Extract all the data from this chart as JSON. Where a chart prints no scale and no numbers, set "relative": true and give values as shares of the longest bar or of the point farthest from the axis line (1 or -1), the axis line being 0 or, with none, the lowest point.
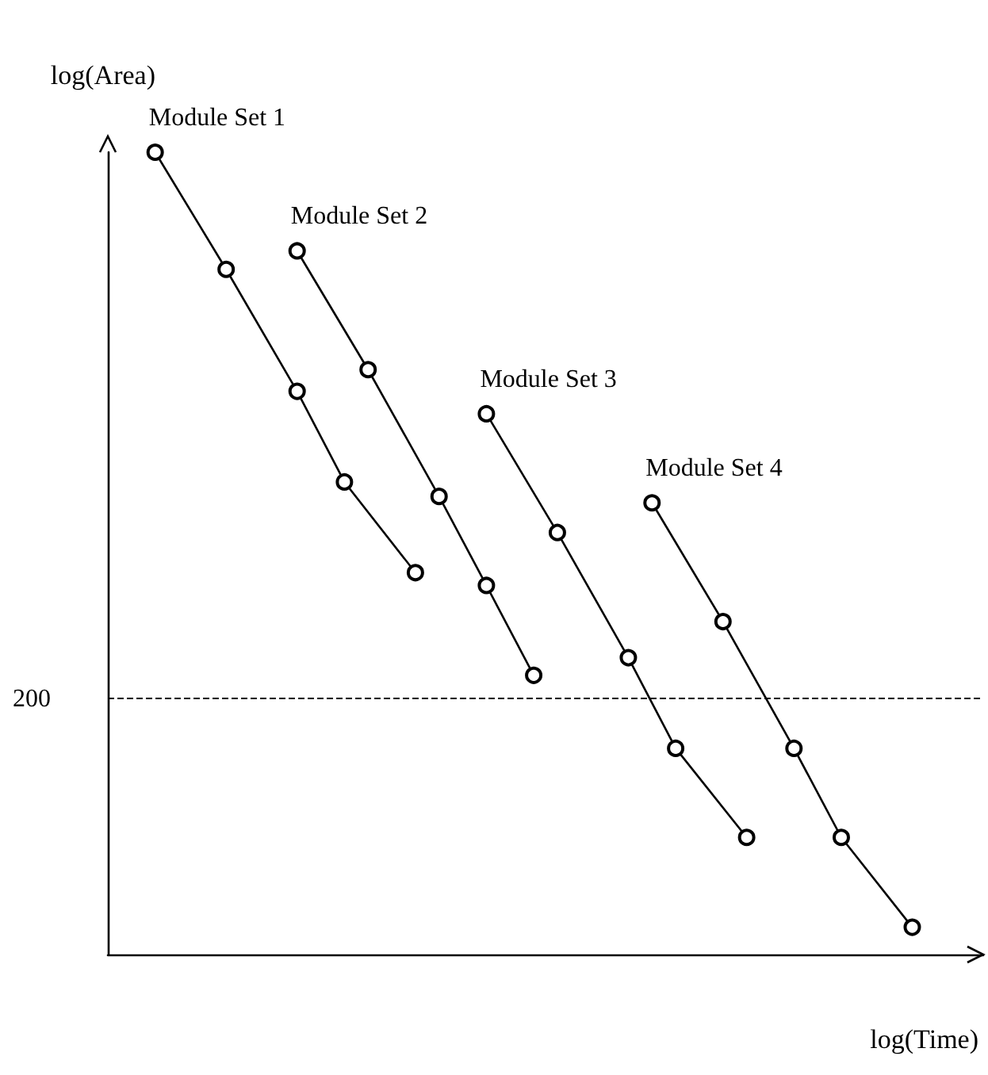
{
  "chart_data": {
    "type": "line",
    "relative": true,
    "xlabel": "log(Time)",
    "ylabel": "log(Area)",
    "marker": "circle",
    "line_style": "solid",
    "grid": false,
    "legend": false,
    "categories": [
      null,
      null,
      null,
      null,
      null,
      null,
      null,
      null,
      null,
      null,
      null,
      null,
      null,
      null,
      null,
      null,
      null,
      null,
      null,
      null,
      null,
      null,
      null,
      null,
      null,
      null,
      null,
      null,
      null,
      null,
      null,
      null,
      null,
      null,
      null,
      null,
      null,
      null
    ],
    "series": [
      {
        "name": "Module Set 1",
        "color": "#000000",
        "values": [
          null,
          null,
          1,
          null,
          null,
          0.854,
          null,
          null,
          0.702,
          null,
          0.589,
          null,
          null,
          0.476,
          null,
          null,
          null,
          null,
          null,
          null,
          null,
          null,
          null,
          null,
          null,
          null,
          null,
          null,
          null,
          null,
          null,
          null,
          null,
          null,
          null,
          null,
          null,
          null
        ]
      },
      {
        "name": "Module Set 2",
        "color": "#000000",
        "values": [
          null,
          null,
          null,
          null,
          null,
          null,
          null,
          null,
          0.877,
          null,
          null,
          0.729,
          null,
          null,
          0.571,
          null,
          0.46,
          null,
          0.348,
          null,
          null,
          null,
          null,
          null,
          null,
          null,
          null,
          null,
          null,
          null,
          null,
          null,
          null,
          null,
          null,
          null,
          null,
          null
        ]
      },
      {
        "name": "Module Set 3",
        "color": "#000000",
        "values": [
          null,
          null,
          null,
          null,
          null,
          null,
          null,
          null,
          null,
          null,
          null,
          null,
          null,
          null,
          null,
          null,
          0.674,
          null,
          null,
          0.526,
          null,
          null,
          0.37,
          null,
          0.257,
          null,
          null,
          0.146,
          null,
          null,
          null,
          null,
          null,
          null,
          null,
          null,
          null,
          null
        ]
      },
      {
        "name": "Module Set 4",
        "color": "#000000",
        "values": [
          null,
          null,
          null,
          null,
          null,
          null,
          null,
          null,
          null,
          null,
          null,
          null,
          null,
          null,
          null,
          null,
          null,
          null,
          null,
          null,
          null,
          null,
          null,
          0.563,
          null,
          null,
          0.415,
          null,
          null,
          0.257,
          null,
          0.146,
          null,
          null,
          0.034,
          null,
          null,
          null
        ]
      }
    ],
    "ref_lines": [
      {
        "axis": "y",
        "value": 0.316,
        "color": "#000000",
        "line_style": "dashed"
      }
    ],
    "annotations": [
      "200"
    ]
  }
}
